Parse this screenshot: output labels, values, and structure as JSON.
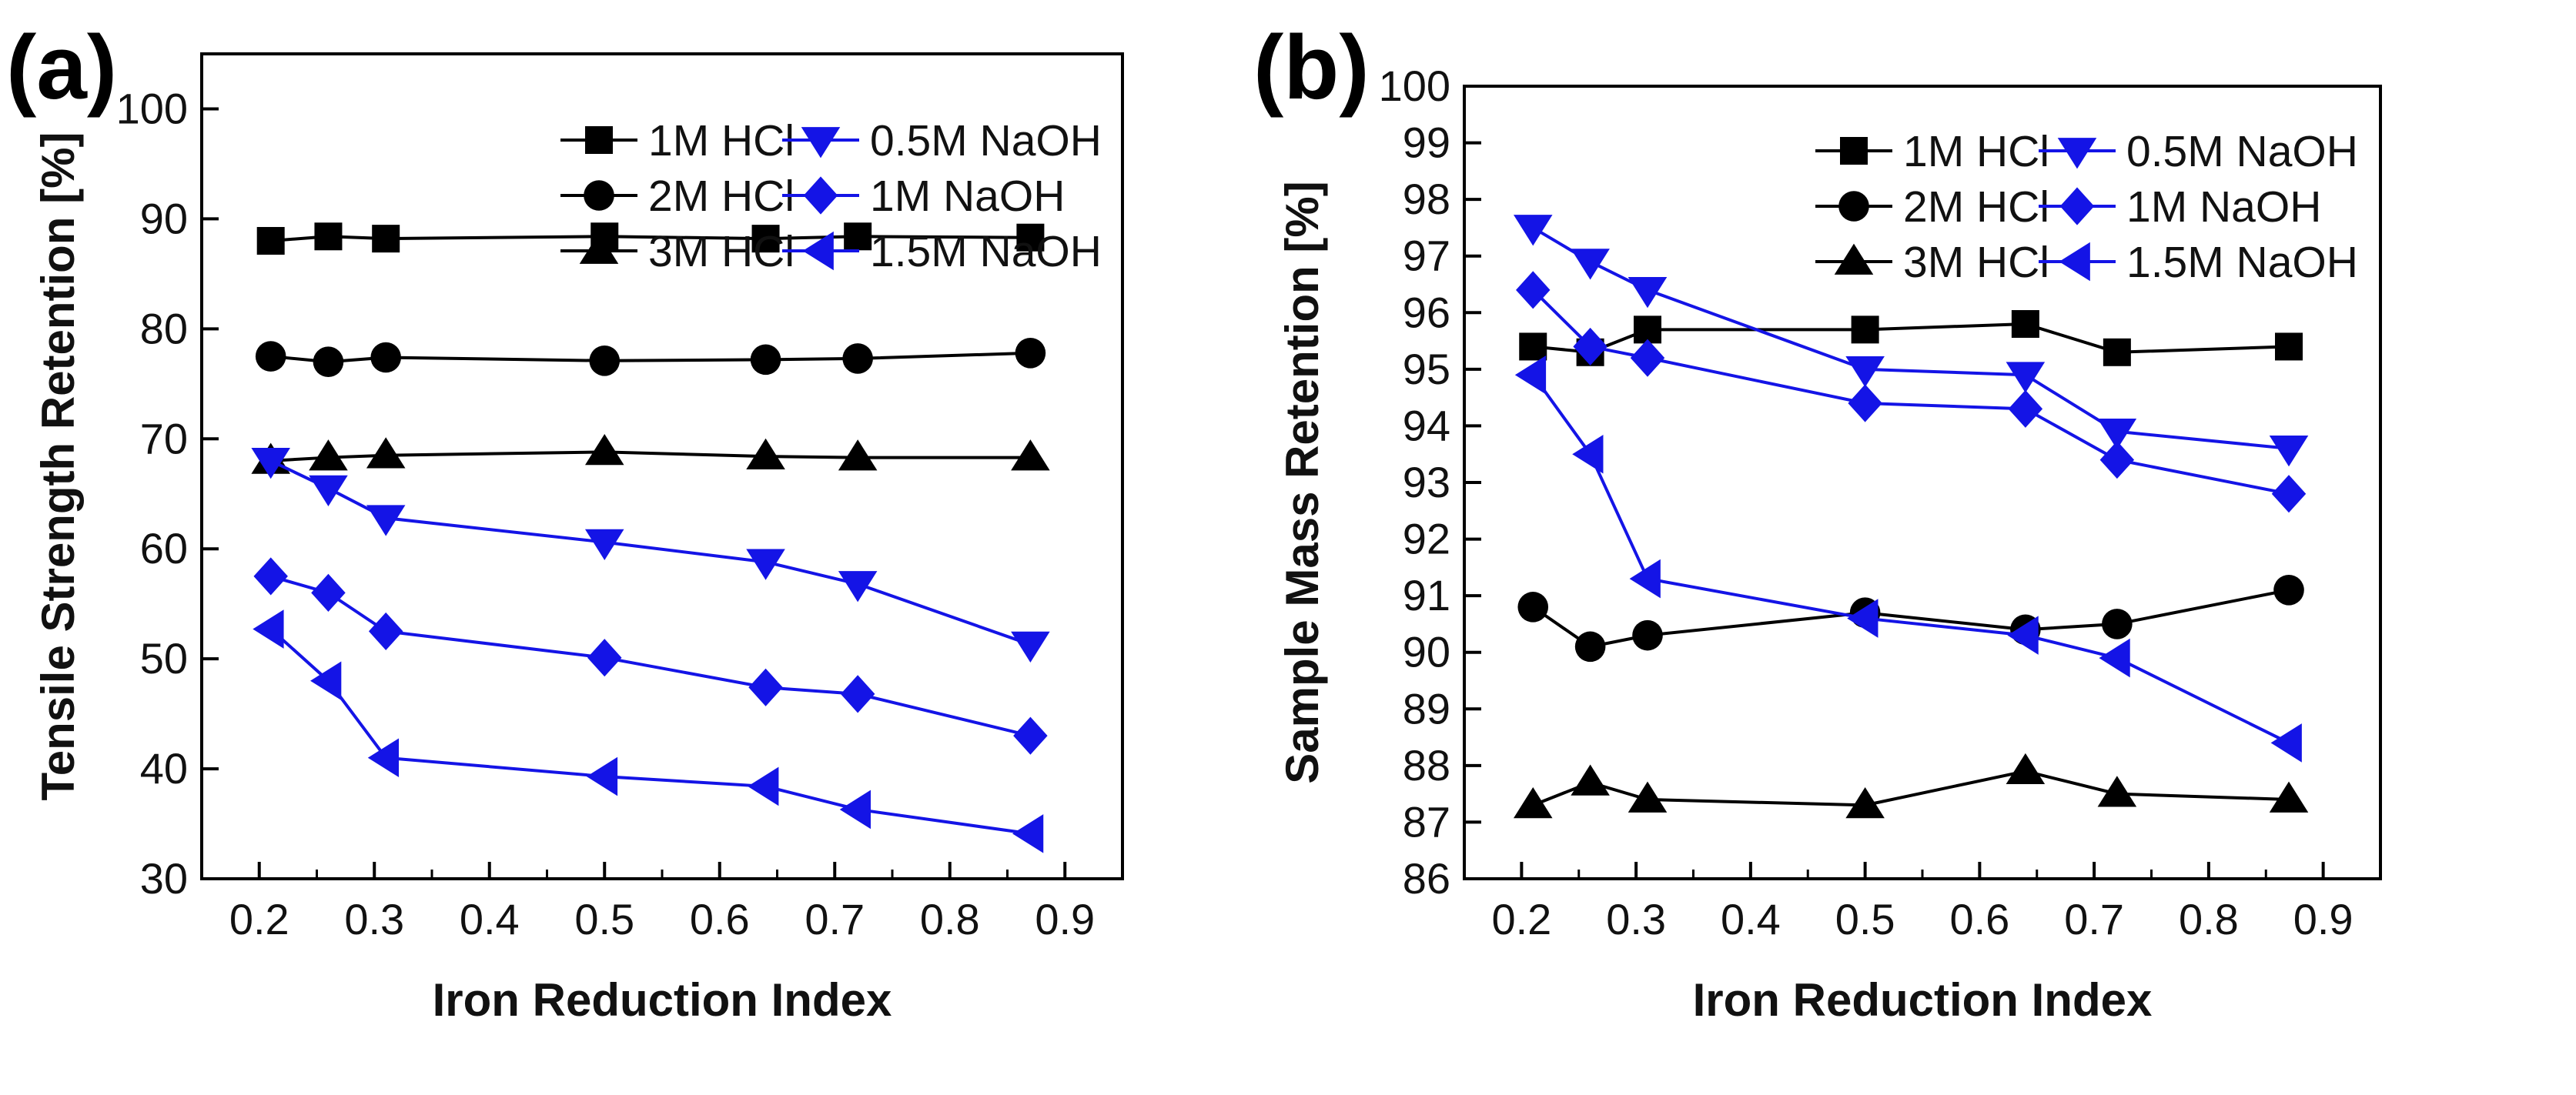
{
  "chart_data": [
    {
      "type": "line",
      "panel_label": "(a)",
      "xlabel": "Iron Reduction Index",
      "ylabel": "Tensile Strength Retention [%]",
      "xlim": [
        0.15,
        0.95
      ],
      "ylim": [
        30,
        105
      ],
      "xticks": [
        0.2,
        0.3,
        0.4,
        0.5,
        0.6,
        0.7,
        0.8,
        0.9
      ],
      "yticks": [
        30,
        40,
        50,
        60,
        70,
        80,
        90,
        100
      ],
      "legend_position": "top-right",
      "x": [
        0.21,
        0.26,
        0.31,
        0.5,
        0.64,
        0.72,
        0.87
      ],
      "series": [
        {
          "name": "1M HCl",
          "marker": "square",
          "color": "#000000",
          "values": [
            88.0,
            88.4,
            88.2,
            88.4,
            88.2,
            88.4,
            88.3
          ]
        },
        {
          "name": "2M HCl",
          "marker": "circle",
          "color": "#000000",
          "values": [
            77.5,
            77.0,
            77.4,
            77.1,
            77.2,
            77.3,
            77.8
          ]
        },
        {
          "name": "3M HCl",
          "marker": "triangle-up",
          "color": "#000000",
          "values": [
            68.0,
            68.3,
            68.5,
            68.8,
            68.4,
            68.3,
            68.3
          ]
        },
        {
          "name": "0.5M NaOH",
          "marker": "triangle-down",
          "color": "#1414e6",
          "values": [
            68.0,
            65.5,
            62.8,
            60.6,
            58.8,
            56.8,
            51.3
          ]
        },
        {
          "name": "1M NaOH",
          "marker": "diamond",
          "color": "#1414e6",
          "values": [
            57.5,
            56.0,
            52.5,
            50.1,
            47.4,
            46.8,
            43.0
          ]
        },
        {
          "name": "1.5M NaOH",
          "marker": "triangle-left",
          "color": "#1414e6",
          "values": [
            52.7,
            48.0,
            41.0,
            39.3,
            38.4,
            36.3,
            34.1
          ]
        }
      ]
    },
    {
      "type": "line",
      "panel_label": "(b)",
      "xlabel": "Iron Reduction Index",
      "ylabel": "Sample Mass Retention [%]",
      "xlim": [
        0.15,
        0.95
      ],
      "ylim": [
        86,
        100
      ],
      "xticks": [
        0.2,
        0.3,
        0.4,
        0.5,
        0.6,
        0.7,
        0.8,
        0.9
      ],
      "yticks": [
        86,
        87,
        88,
        89,
        90,
        91,
        92,
        93,
        94,
        95,
        96,
        97,
        98,
        99,
        100
      ],
      "legend_position": "top-right",
      "x": [
        0.21,
        0.26,
        0.31,
        0.5,
        0.64,
        0.72,
        0.87
      ],
      "series": [
        {
          "name": "1M HCl",
          "marker": "square",
          "color": "#000000",
          "values": [
            95.4,
            95.3,
            95.7,
            95.7,
            95.8,
            95.3,
            95.4
          ]
        },
        {
          "name": "2M HCl",
          "marker": "circle",
          "color": "#000000",
          "values": [
            90.8,
            90.1,
            90.3,
            90.7,
            90.4,
            90.5,
            91.1
          ]
        },
        {
          "name": "3M HCl",
          "marker": "triangle-up",
          "color": "#000000",
          "values": [
            87.3,
            87.7,
            87.4,
            87.3,
            87.9,
            87.5,
            87.4
          ]
        },
        {
          "name": "0.5M NaOH",
          "marker": "triangle-down",
          "color": "#1414e6",
          "values": [
            97.5,
            96.9,
            96.4,
            95.0,
            94.9,
            93.9,
            93.6
          ]
        },
        {
          "name": "1M NaOH",
          "marker": "diamond",
          "color": "#1414e6",
          "values": [
            96.4,
            95.4,
            95.2,
            94.4,
            94.3,
            93.4,
            92.8
          ]
        },
        {
          "name": "1.5M NaOH",
          "marker": "triangle-left",
          "color": "#1414e6",
          "values": [
            94.9,
            93.5,
            91.3,
            90.6,
            90.3,
            89.9,
            88.4
          ]
        }
      ]
    }
  ]
}
